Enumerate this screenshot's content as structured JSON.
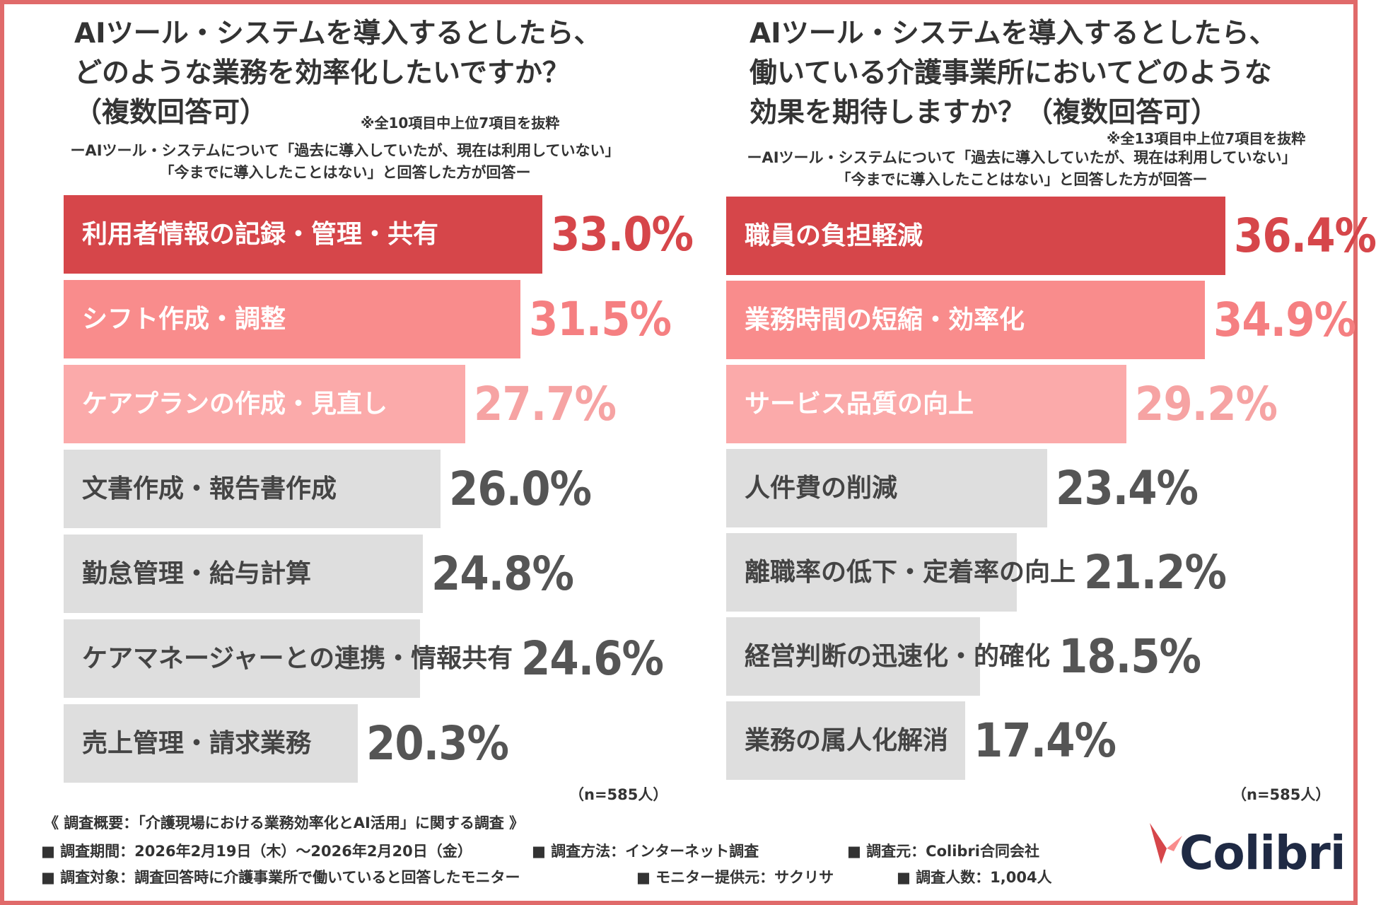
{
  "left": {
    "title_lines": [
      "AIツール・システムを導入するとしたら、",
      "どのような業務を効率化したいですか？",
      "（複数回答可）"
    ],
    "note": "※全10項目中上位7項目を抜粋",
    "subtitle_lines": [
      "ーAIツール・システムについて「過去に導入していたが、現在は利用していない」",
      "「今までに導入したことはない」と回答した方が回答ー"
    ],
    "n_label": "（n=585人）"
  },
  "right": {
    "title_lines": [
      "AIツール・システムを導入するとしたら、",
      "働いている介護事業所においてどのような",
      "効果を期待しますか？（複数回答可）"
    ],
    "note": "※全13項目中上位7項目を抜粋",
    "subtitle_lines": [
      "ーAIツール・システムについて「過去に導入していたが、現在は利用していない」",
      "「今までに導入したことはない」と回答した方が回答ー"
    ],
    "n_label": "（n=585人）"
  },
  "chart_data": [
    {
      "type": "bar",
      "orientation": "horizontal",
      "title": "AIツール・システムを導入するとしたら、どのような業務を効率化したいですか？（複数回答可）",
      "categories": [
        "利用者情報の記録・管理・共有",
        "シフト作成・調整",
        "ケアプランの作成・見直し",
        "文書作成・報告書作成",
        "勤怠管理・給与計算",
        "ケアマネージャーとの連携・情報共有",
        "売上管理・請求業務"
      ],
      "values": [
        33.0,
        31.5,
        27.7,
        26.0,
        24.8,
        24.6,
        20.3
      ],
      "value_labels": [
        "33.0%",
        "31.5%",
        "27.7%",
        "26.0%",
        "24.8%",
        "24.6%",
        "20.3%"
      ],
      "unit": "%",
      "xlim": [
        0,
        40
      ],
      "colors": [
        "#d6464a",
        "#f98c8c",
        "#fbaaaa",
        "#dedede",
        "#dedede",
        "#dedede",
        "#dedede"
      ],
      "label_colors": [
        "#ffffff",
        "#ffffff",
        "#ffffff",
        "#444444",
        "#444444",
        "#444444",
        "#444444"
      ],
      "value_colors": [
        "#d6464a",
        "#f57f81",
        "#f6a3a3",
        "#555555",
        "#555555",
        "#555555",
        "#555555"
      ]
    },
    {
      "type": "bar",
      "orientation": "horizontal",
      "title": "AIツール・システムを導入するとしたら、働いている介護事業所においてどのような効果を期待しますか？（複数回答可）",
      "categories": [
        "職員の負担軽減",
        "業務時間の短縮・効率化",
        "サービス品質の向上",
        "人件費の削減",
        "離職率の低下・定着率の向上",
        "経営判断の迅速化・的確化",
        "業務の属人化解消"
      ],
      "values": [
        36.4,
        34.9,
        29.2,
        23.4,
        21.2,
        18.5,
        17.4
      ],
      "value_labels": [
        "36.4%",
        "34.9%",
        "29.2%",
        "23.4%",
        "21.2%",
        "18.5%",
        "17.4%"
      ],
      "unit": "%",
      "xlim": [
        0,
        40
      ],
      "colors": [
        "#d6464a",
        "#f98c8c",
        "#fbaaaa",
        "#dedede",
        "#dedede",
        "#dedede",
        "#dedede"
      ],
      "label_colors": [
        "#ffffff",
        "#ffffff",
        "#ffffff",
        "#444444",
        "#444444",
        "#444444",
        "#444444"
      ],
      "value_colors": [
        "#d6464a",
        "#f57f81",
        "#f6a3a3",
        "#555555",
        "#555555",
        "#555555",
        "#555555"
      ]
    }
  ],
  "footer": {
    "heading": "《 調査概要：「介護現場における業務効率化とAI活用」に関する調査 》",
    "period": "■ 調査期間：2026年2月19日（木）〜2026年2月20日（金）",
    "method": "■ 調査方法：インターネット調査",
    "source": "■ 調査元：Colibri合同会社",
    "target": "■ 調査対象：調査回答時に介護事業所で働いていると回答したモニター",
    "provider": "■ モニター提供元：サクリサ",
    "count": "■ 調査人数：1,004人"
  },
  "logo": {
    "text": "Colibri"
  },
  "colors": {
    "accent": "#d6464a",
    "border": "#e06a6a"
  }
}
